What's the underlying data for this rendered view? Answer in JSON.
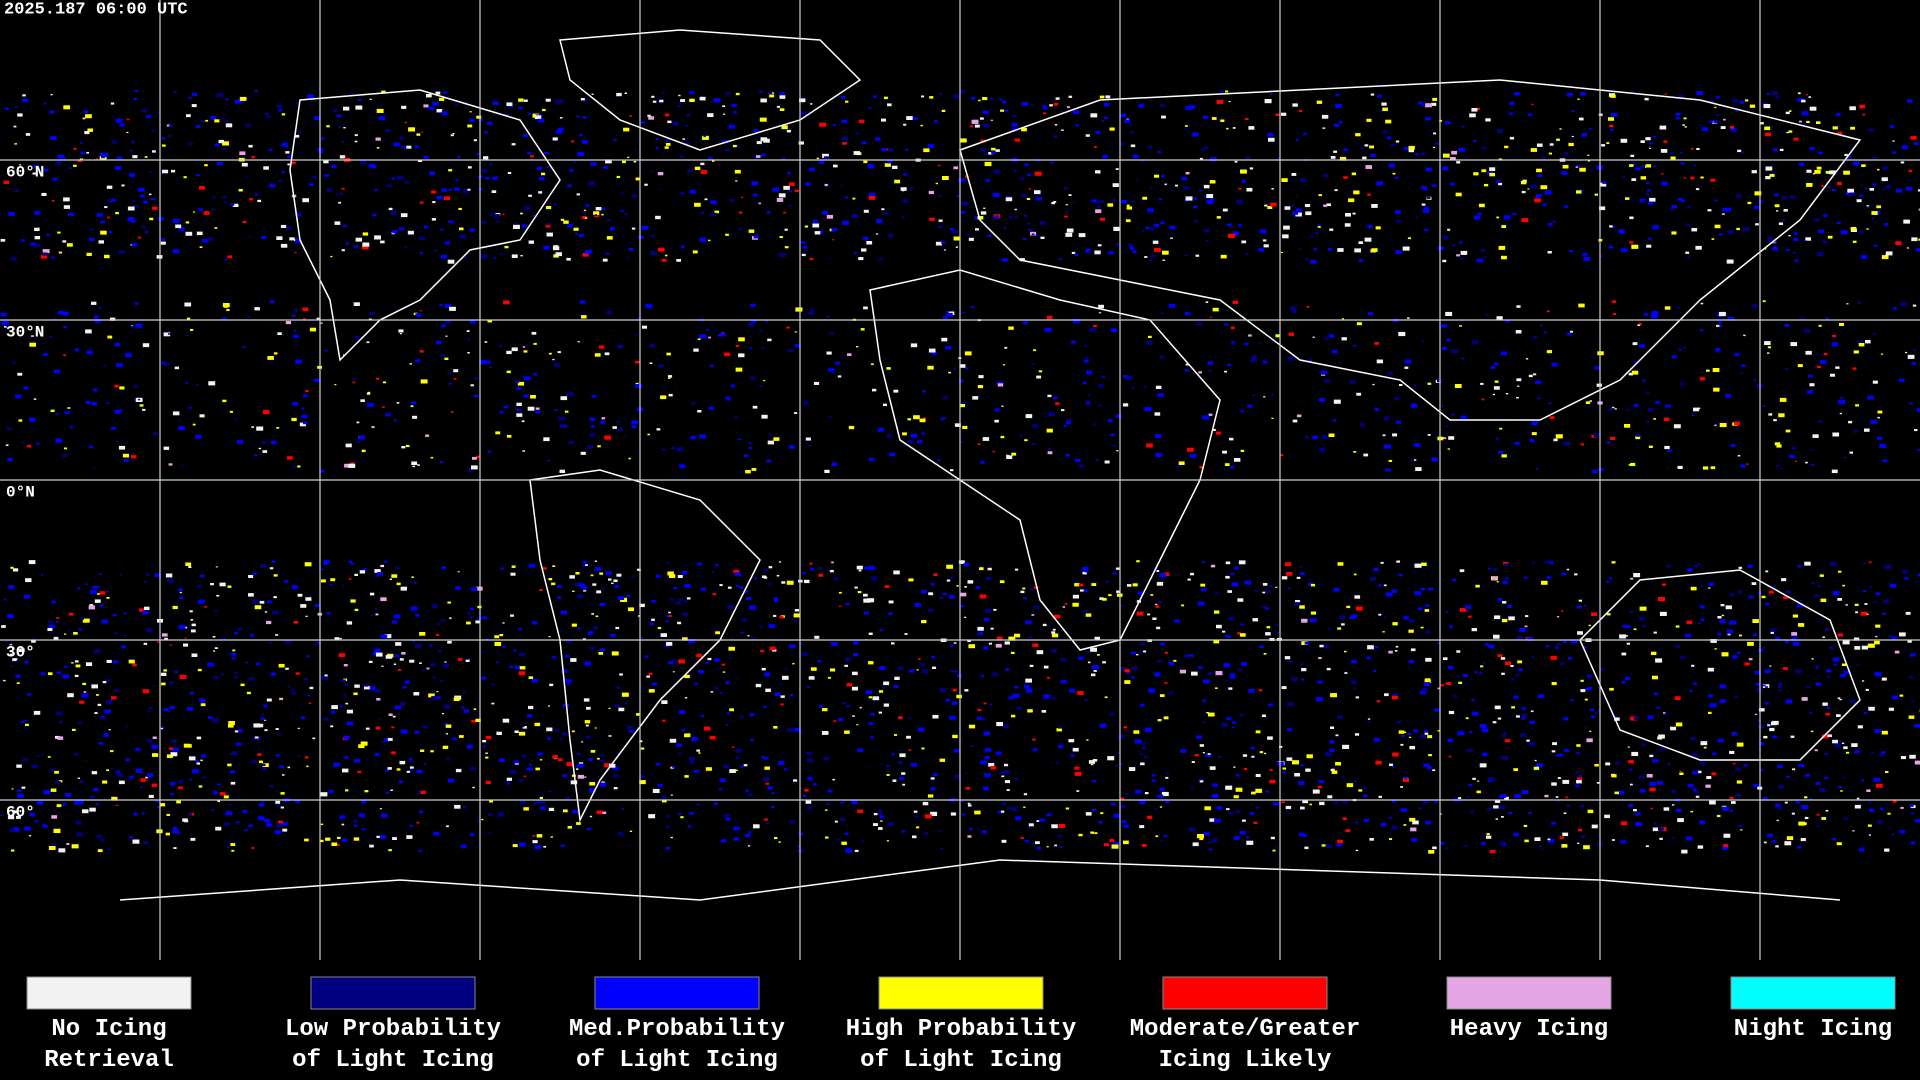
{
  "header": {
    "timestamp": "2025.187 06:00 UTC"
  },
  "map": {
    "lat_labels": [
      "60°N",
      "30°N",
      "0°N",
      "30°",
      "60°"
    ]
  },
  "legend": [
    {
      "lines": [
        "No Icing",
        "Retrieval"
      ],
      "color": "#f2f2f2"
    },
    {
      "lines": [
        "Low Probability",
        "of Light Icing"
      ],
      "color": "#000080"
    },
    {
      "lines": [
        "Med.Probability",
        "of Light Icing"
      ],
      "color": "#0000ff"
    },
    {
      "lines": [
        "High Probability",
        "of Light Icing"
      ],
      "color": "#ffff00"
    },
    {
      "lines": [
        "Moderate/Greater",
        "Icing Likely"
      ],
      "color": "#ff0000"
    },
    {
      "lines": [
        "Heavy Icing"
      ],
      "color": "#e6a6e6"
    },
    {
      "lines": [
        "Night Icing"
      ],
      "color": "#00ffff"
    }
  ]
}
